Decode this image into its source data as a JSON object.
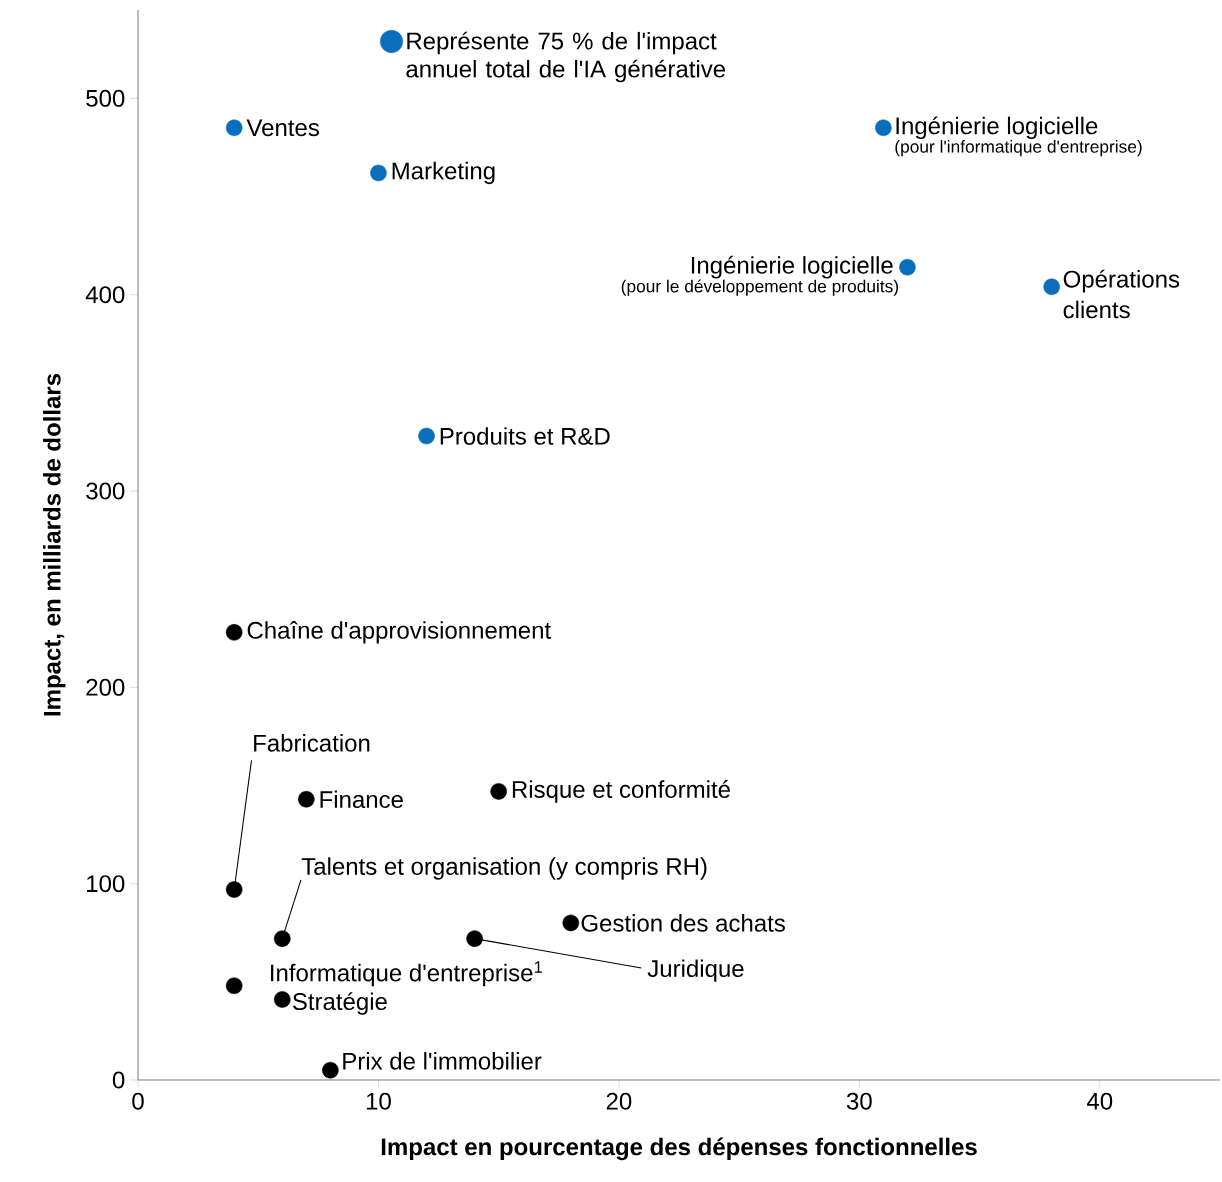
{
  "chart_data": {
    "type": "scatter",
    "xlabel": "Impact en pourcentage des dépenses fonctionnelles",
    "ylabel": "Impact, en milliards de dollars",
    "xlim": [
      0,
      45
    ],
    "ylim": [
      0,
      545
    ],
    "xticks": [
      0,
      10,
      20,
      30,
      40
    ],
    "yticks": [
      0,
      100,
      200,
      300,
      400,
      500
    ],
    "grid": false,
    "legend": "top",
    "marker": "circle",
    "series": [
      {
        "name": "Représente 75 % de l'impact annuel total de l'IA générative",
        "color": "#0a6ebd",
        "x": [
          4,
          10,
          31,
          32,
          38,
          12
        ],
        "values": [
          485,
          462,
          485,
          414,
          404,
          328
        ]
      },
      {
        "color": "#000000",
        "x": [
          4,
          4,
          7,
          15,
          6,
          14,
          18,
          4,
          6,
          8
        ],
        "values": [
          228,
          97,
          143,
          147,
          72,
          72,
          80,
          48,
          41,
          5
        ]
      }
    ],
    "annotations": [
      {
        "text": "Ventes",
        "x": 4,
        "y": 485
      },
      {
        "text": "Marketing",
        "x": 10,
        "y": 462
      },
      {
        "text": "Ingénierie logicielle",
        "x": 31,
        "y": 485
      },
      {
        "text": "(pour l'informatique d'entreprise)",
        "x": 31,
        "y": 485
      },
      {
        "text": "Ingénierie logicielle",
        "x": 32,
        "y": 414
      },
      {
        "text": "(pour le développement de produits)",
        "x": 32,
        "y": 414
      },
      {
        "text": "Opérations clients",
        "x": 38,
        "y": 404
      },
      {
        "text": "Produits et R&D",
        "x": 12,
        "y": 328
      },
      {
        "text": "Chaîne d'approvisionnement",
        "x": 4,
        "y": 228
      },
      {
        "text": "Fabrication",
        "x": 4,
        "y": 97
      },
      {
        "text": "Finance",
        "x": 7,
        "y": 143
      },
      {
        "text": "Risque et conformité",
        "x": 15,
        "y": 147
      },
      {
        "text": "Talents et organisation (y compris RH)",
        "x": 6,
        "y": 72
      },
      {
        "text": "Juridique",
        "x": 14,
        "y": 72
      },
      {
        "text": "Gestion des achats",
        "x": 18,
        "y": 80
      },
      {
        "text": "Informatique d'entreprise$^{1}$",
        "x": 4,
        "y": 48
      },
      {
        "text": "Stratégie",
        "x": 6,
        "y": 41
      },
      {
        "text": "Prix de l'immobilier",
        "x": 8,
        "y": 5
      }
    ]
  }
}
